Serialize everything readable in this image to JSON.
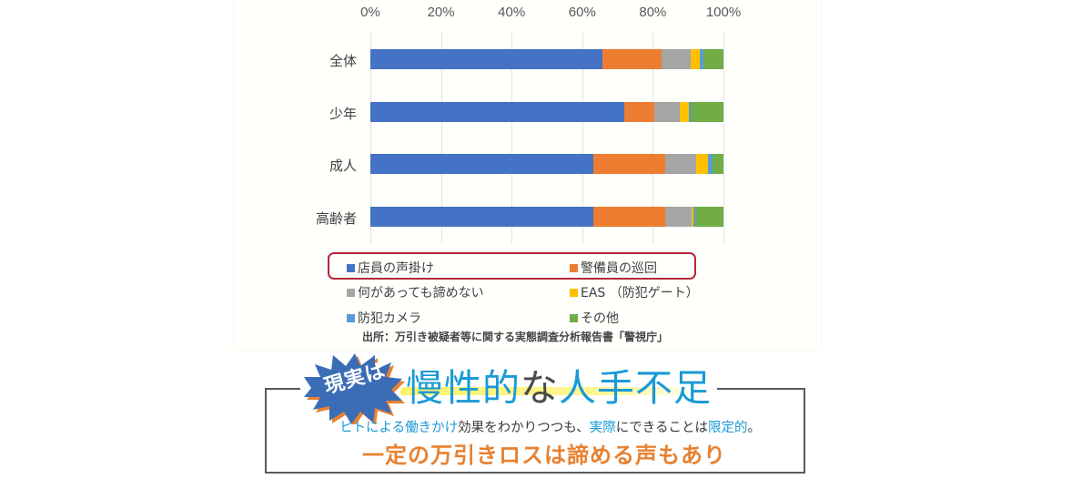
{
  "chart_data": {
    "type": "bar",
    "orientation": "horizontal-stacked-100",
    "title": "",
    "categories": [
      "全体",
      "少年",
      "成人",
      "高齢者"
    ],
    "series": [
      {
        "name": "店員の声掛け",
        "color": "#4472c4",
        "values": [
          65.6,
          72.0,
          63.2,
          63.2
        ]
      },
      {
        "name": "警備員の巡回",
        "color": "#ed7d31",
        "values": [
          16.9,
          8.4,
          20.4,
          20.2
        ]
      },
      {
        "name": "何があっても諦めない",
        "color": "#a5a5a5",
        "values": [
          8.1,
          7.3,
          8.8,
          7.6
        ]
      },
      {
        "name": "EAS （防犯ゲート）",
        "color": "#ffc000",
        "values": [
          2.6,
          2.4,
          3.2,
          0.6
        ]
      },
      {
        "name": "防犯カメラ",
        "color": "#5b9bd5",
        "values": [
          1.1,
          0.6,
          1.2,
          0.4
        ]
      },
      {
        "name": "その他",
        "color": "#70ad47",
        "values": [
          5.7,
          9.3,
          3.2,
          8.0
        ]
      }
    ],
    "xlabel": "",
    "ylabel": "",
    "xlim": [
      0,
      100
    ],
    "x_ticks": [
      "0%",
      "20%",
      "40%",
      "60%",
      "80%",
      "100%"
    ],
    "grid": true,
    "legend_position": "bottom",
    "highlighted_legend_entries": [
      "店員の声掛け",
      "警備員の巡回"
    ]
  },
  "axis": {
    "ticks": [
      "0%",
      "20%",
      "40%",
      "60%",
      "80%",
      "100%"
    ]
  },
  "categories": [
    "全体",
    "少年",
    "成人",
    "高齢者"
  ],
  "legend": [
    {
      "label": "店員の声掛け",
      "color": "#4472c4"
    },
    {
      "label": "警備員の巡回",
      "color": "#ed7d31"
    },
    {
      "label": "何があっても諦めない",
      "color": "#a5a5a5"
    },
    {
      "label": "EAS （防犯ゲート）",
      "color": "#ffc000"
    },
    {
      "label": "防犯カメラ",
      "color": "#5b9bd5"
    },
    {
      "label": "その他",
      "color": "#70ad47"
    }
  ],
  "source": "出所：万引き被疑者等に関する実態調査分析報告書「警視庁」",
  "callout": {
    "badge": "現実は",
    "headline_part1": "慢性的",
    "headline_part2": "な",
    "headline_part3": "人手不足",
    "sub_parts": [
      {
        "text": "ヒトによる働きかけ",
        "blue": true
      },
      {
        "text": "効果をわかりつつも、",
        "blue": false
      },
      {
        "text": "実際",
        "blue": true
      },
      {
        "text": "にできることは",
        "blue": false
      },
      {
        "text": "限定的",
        "blue": true
      },
      {
        "text": "。",
        "blue": false
      }
    ],
    "conclusion": "一定の万引きロスは諦める声もあり"
  },
  "colors": {
    "accent_blue": "#1a9ad6",
    "accent_orange": "#e8812f",
    "highlight_box": "#b5273a",
    "badge_blue": "#3b6db6"
  }
}
